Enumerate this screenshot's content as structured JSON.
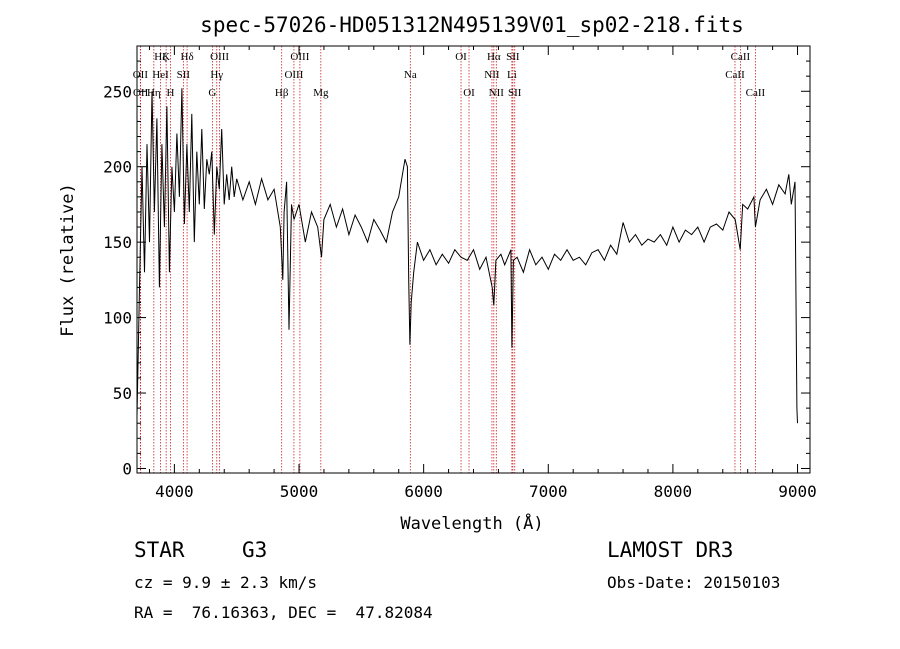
{
  "chart_data": {
    "type": "line",
    "title": "spec-57026-HD051312N495139V01_sp02-218.fits",
    "xlabel": "Wavelength (Å)",
    "ylabel": "Flux (relative)",
    "xlim": [
      3700,
      9100
    ],
    "ylim": [
      -3,
      280
    ],
    "x_ticks": [
      4000,
      5000,
      6000,
      7000,
      8000,
      9000
    ],
    "y_ticks": [
      0,
      50,
      100,
      150,
      200,
      250
    ],
    "grid": false,
    "series": [
      {
        "name": "flux",
        "points": [
          [
            3700,
            35
          ],
          [
            3720,
            120
          ],
          [
            3740,
            200
          ],
          [
            3760,
            130
          ],
          [
            3780,
            215
          ],
          [
            3800,
            150
          ],
          [
            3820,
            250
          ],
          [
            3840,
            170
          ],
          [
            3860,
            232
          ],
          [
            3880,
            120
          ],
          [
            3900,
            215
          ],
          [
            3920,
            160
          ],
          [
            3940,
            240
          ],
          [
            3960,
            130
          ],
          [
            3980,
            200
          ],
          [
            4000,
            170
          ],
          [
            4020,
            222
          ],
          [
            4040,
            180
          ],
          [
            4060,
            252
          ],
          [
            4080,
            162
          ],
          [
            4100,
            215
          ],
          [
            4120,
            170
          ],
          [
            4140,
            235
          ],
          [
            4160,
            150
          ],
          [
            4180,
            210
          ],
          [
            4200,
            175
          ],
          [
            4220,
            225
          ],
          [
            4240,
            172
          ],
          [
            4260,
            205
          ],
          [
            4280,
            195
          ],
          [
            4300,
            210
          ],
          [
            4320,
            155
          ],
          [
            4340,
            200
          ],
          [
            4360,
            185
          ],
          [
            4380,
            225
          ],
          [
            4400,
            175
          ],
          [
            4420,
            195
          ],
          [
            4440,
            178
          ],
          [
            4460,
            200
          ],
          [
            4480,
            180
          ],
          [
            4500,
            192
          ],
          [
            4550,
            178
          ],
          [
            4600,
            190
          ],
          [
            4650,
            175
          ],
          [
            4700,
            192
          ],
          [
            4750,
            178
          ],
          [
            4800,
            185
          ],
          [
            4850,
            160
          ],
          [
            4870,
            125
          ],
          [
            4880,
            170
          ],
          [
            4900,
            190
          ],
          [
            4920,
            92
          ],
          [
            4940,
            175
          ],
          [
            4960,
            165
          ],
          [
            5000,
            175
          ],
          [
            5050,
            150
          ],
          [
            5100,
            170
          ],
          [
            5150,
            160
          ],
          [
            5180,
            140
          ],
          [
            5200,
            165
          ],
          [
            5250,
            175
          ],
          [
            5300,
            160
          ],
          [
            5350,
            172
          ],
          [
            5400,
            155
          ],
          [
            5450,
            168
          ],
          [
            5500,
            160
          ],
          [
            5550,
            150
          ],
          [
            5600,
            165
          ],
          [
            5650,
            158
          ],
          [
            5700,
            150
          ],
          [
            5750,
            170
          ],
          [
            5800,
            180
          ],
          [
            5850,
            205
          ],
          [
            5870,
            200
          ],
          [
            5880,
            125
          ],
          [
            5890,
            82
          ],
          [
            5900,
            110
          ],
          [
            5920,
            130
          ],
          [
            5950,
            150
          ],
          [
            6000,
            138
          ],
          [
            6050,
            145
          ],
          [
            6100,
            135
          ],
          [
            6150,
            142
          ],
          [
            6200,
            136
          ],
          [
            6250,
            145
          ],
          [
            6300,
            140
          ],
          [
            6350,
            138
          ],
          [
            6400,
            145
          ],
          [
            6450,
            132
          ],
          [
            6500,
            140
          ],
          [
            6550,
            120
          ],
          [
            6563,
            108
          ],
          [
            6580,
            138
          ],
          [
            6620,
            142
          ],
          [
            6650,
            135
          ],
          [
            6700,
            145
          ],
          [
            6708,
            80
          ],
          [
            6720,
            138
          ],
          [
            6750,
            140
          ],
          [
            6800,
            130
          ],
          [
            6850,
            145
          ],
          [
            6900,
            135
          ],
          [
            6950,
            140
          ],
          [
            7000,
            132
          ],
          [
            7050,
            142
          ],
          [
            7100,
            138
          ],
          [
            7150,
            145
          ],
          [
            7200,
            138
          ],
          [
            7250,
            140
          ],
          [
            7300,
            135
          ],
          [
            7350,
            143
          ],
          [
            7400,
            145
          ],
          [
            7450,
            138
          ],
          [
            7500,
            148
          ],
          [
            7550,
            142
          ],
          [
            7600,
            163
          ],
          [
            7650,
            150
          ],
          [
            7700,
            155
          ],
          [
            7750,
            148
          ],
          [
            7800,
            152
          ],
          [
            7850,
            150
          ],
          [
            7900,
            155
          ],
          [
            7950,
            148
          ],
          [
            8000,
            160
          ],
          [
            8050,
            150
          ],
          [
            8100,
            158
          ],
          [
            8150,
            155
          ],
          [
            8200,
            160
          ],
          [
            8250,
            150
          ],
          [
            8300,
            160
          ],
          [
            8350,
            162
          ],
          [
            8400,
            158
          ],
          [
            8450,
            170
          ],
          [
            8500,
            165
          ],
          [
            8540,
            145
          ],
          [
            8560,
            175
          ],
          [
            8600,
            172
          ],
          [
            8650,
            180
          ],
          [
            8662,
            160
          ],
          [
            8700,
            178
          ],
          [
            8750,
            185
          ],
          [
            8800,
            175
          ],
          [
            8850,
            188
          ],
          [
            8900,
            182
          ],
          [
            8930,
            195
          ],
          [
            8950,
            175
          ],
          [
            8980,
            190
          ],
          [
            8995,
            40
          ],
          [
            9000,
            30
          ]
        ]
      }
    ],
    "line_markers": [
      {
        "label": "Hζ",
        "wavelength": 3889,
        "row": 0
      },
      {
        "label": "K",
        "wavelength": 3934,
        "row": 0
      },
      {
        "label": "Hδ",
        "wavelength": 4102,
        "row": 0
      },
      {
        "label": "OIII",
        "wavelength": 4363,
        "row": 0
      },
      {
        "label": "OIII",
        "wavelength": 5007,
        "row": 0
      },
      {
        "label": "OI",
        "wavelength": 6300,
        "row": 0
      },
      {
        "label": "Hα",
        "wavelength": 6563,
        "row": 0
      },
      {
        "label": "SII",
        "wavelength": 6716,
        "row": 0
      },
      {
        "label": "CaII",
        "wavelength": 8542,
        "row": 0
      },
      {
        "label": "OII",
        "wavelength": 3727,
        "row": 1
      },
      {
        "label": "HeI",
        "wavelength": 3889,
        "row": 1
      },
      {
        "label": "SII",
        "wavelength": 4072,
        "row": 1
      },
      {
        "label": "Hγ",
        "wavelength": 4340,
        "row": 1
      },
      {
        "label": "OIII",
        "wavelength": 4959,
        "row": 1
      },
      {
        "label": "Na",
        "wavelength": 5893,
        "row": 1
      },
      {
        "label": "NII",
        "wavelength": 6548,
        "row": 1
      },
      {
        "label": "Li",
        "wavelength": 6708,
        "row": 1
      },
      {
        "label": "CaII",
        "wavelength": 8498,
        "row": 1
      },
      {
        "label": "OII",
        "wavelength": 3729,
        "row": 2
      },
      {
        "label": "Hη",
        "wavelength": 3835,
        "row": 2
      },
      {
        "label": "H",
        "wavelength": 3969,
        "row": 2
      },
      {
        "label": "G",
        "wavelength": 4305,
        "row": 2
      },
      {
        "label": "Hβ",
        "wavelength": 4861,
        "row": 2
      },
      {
        "label": "Mg",
        "wavelength": 5175,
        "row": 2
      },
      {
        "label": "OI",
        "wavelength": 6364,
        "row": 2
      },
      {
        "label": "NII",
        "wavelength": 6583,
        "row": 2
      },
      {
        "label": "SII",
        "wavelength": 6731,
        "row": 2
      },
      {
        "label": "CaII",
        "wavelength": 8662,
        "row": 2
      }
    ]
  },
  "info": {
    "class": "STAR",
    "subclass": "G3",
    "survey": "LAMOST DR3",
    "cz": "cz = 9.9 ± 2.3 km/s",
    "obs_date": "Obs-Date: 20150103",
    "coords": "RA =  76.16363, DEC =  47.82084"
  },
  "colors": {
    "line": "#000000",
    "marker": "#cc2222",
    "axes": "#000000"
  }
}
